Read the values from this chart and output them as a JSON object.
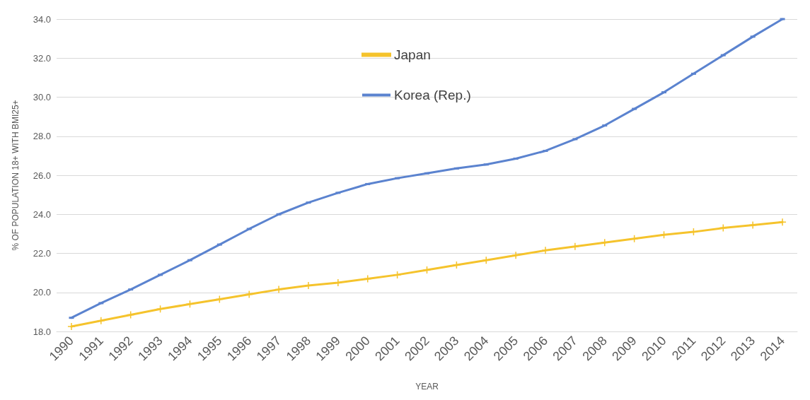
{
  "chart_data": {
    "type": "line",
    "xlabel": "YEAR",
    "ylabel": "% OF POPULATION 18+ WITH BMI25+",
    "categories": [
      "1990",
      "1991",
      "1992",
      "1993",
      "1994",
      "1995",
      "1996",
      "1997",
      "1998",
      "1999",
      "2000",
      "2001",
      "2002",
      "2003",
      "2004",
      "2005",
      "2006",
      "2007",
      "2008",
      "2009",
      "2010",
      "2011",
      "2012",
      "2013",
      "2014"
    ],
    "series": [
      {
        "name": "Japan",
        "color": "#f5c32c",
        "marker": "cross",
        "values": [
          18.25,
          18.55,
          18.85,
          19.15,
          19.4,
          19.65,
          19.9,
          20.15,
          20.35,
          20.5,
          20.7,
          20.9,
          21.15,
          21.4,
          21.65,
          21.9,
          22.15,
          22.35,
          22.55,
          22.75,
          22.95,
          23.1,
          23.3,
          23.45,
          23.6
        ]
      },
      {
        "name": "Korea (Rep.)",
        "color": "#5b83cf",
        "marker": "square",
        "values": [
          18.7,
          19.45,
          20.15,
          20.9,
          21.65,
          22.45,
          23.25,
          24.0,
          24.6,
          25.1,
          25.55,
          25.85,
          26.1,
          26.35,
          26.55,
          26.85,
          27.25,
          27.85,
          28.55,
          29.4,
          30.25,
          31.2,
          32.15,
          33.1,
          34.0
        ]
      }
    ],
    "ylim": [
      18,
      34
    ],
    "yticks": [
      {
        "value": 18,
        "label": "18.0"
      },
      {
        "value": 20,
        "label": "20.0"
      },
      {
        "value": 22,
        "label": "22.0"
      },
      {
        "value": 24,
        "label": "24.0"
      },
      {
        "value": 26,
        "label": "26.0"
      },
      {
        "value": 28,
        "label": "28.0"
      },
      {
        "value": 30,
        "label": "30.0"
      },
      {
        "value": 32,
        "label": "32.0"
      },
      {
        "value": 34,
        "label": "34.0"
      }
    ],
    "grid": "y",
    "legend": "top",
    "line_style": "solid"
  }
}
